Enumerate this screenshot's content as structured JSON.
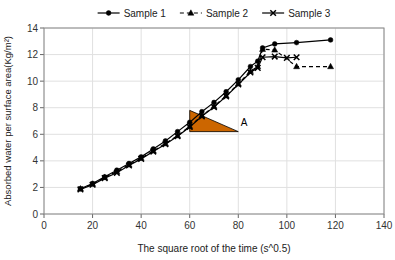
{
  "chart_data": {
    "type": "line",
    "series": [
      {
        "name": "Sample 1",
        "color": "#000000",
        "marker": "circle",
        "line_style": "solid",
        "x": [
          15,
          20,
          25,
          30,
          35,
          40,
          45,
          50,
          55,
          60,
          65,
          70,
          75,
          80,
          85,
          88,
          90,
          95,
          104,
          118
        ],
        "values": [
          1.9,
          2.3,
          2.8,
          3.3,
          3.8,
          4.3,
          4.9,
          5.5,
          6.2,
          6.9,
          7.7,
          8.4,
          9.2,
          10.1,
          11.1,
          11.5,
          12.5,
          12.8,
          12.9,
          13.1
        ]
      },
      {
        "name": "Sample 2",
        "color": "#000000",
        "marker": "triangle",
        "line_style": "dashed",
        "x": [
          15,
          20,
          25,
          30,
          35,
          40,
          45,
          50,
          55,
          60,
          65,
          70,
          75,
          80,
          85,
          88,
          90,
          95,
          104,
          118
        ],
        "values": [
          1.9,
          2.25,
          2.75,
          3.2,
          3.7,
          4.2,
          4.75,
          5.3,
          5.9,
          6.6,
          7.4,
          8.1,
          8.9,
          9.8,
          10.75,
          11.1,
          12.4,
          12.35,
          11.1,
          11.1
        ]
      },
      {
        "name": "Sample 3",
        "color": "#000000",
        "marker": "x",
        "line_style": "solid",
        "x": [
          15,
          20,
          25,
          30,
          35,
          40,
          45,
          50,
          55,
          60,
          65,
          70,
          75,
          80,
          85,
          88,
          90,
          95,
          100,
          104
        ],
        "values": [
          1.85,
          2.2,
          2.7,
          3.1,
          3.65,
          4.15,
          4.7,
          5.25,
          5.85,
          6.55,
          7.35,
          8.05,
          8.85,
          9.75,
          10.65,
          11.0,
          11.8,
          11.85,
          11.75,
          11.8
        ]
      }
    ],
    "annotations": [
      {
        "type": "triangle",
        "x": [
          60,
          60,
          80
        ],
        "y": [
          6.2,
          7.8,
          6.2
        ],
        "color": "#CC6600"
      },
      {
        "type": "text",
        "text": "A",
        "x": 81,
        "y": 6.9
      }
    ],
    "x_label": "The square root of the time (s^0.5)",
    "y_label": "Absorbed water per surface area(Kg/m²)",
    "xlim": [
      0,
      140
    ],
    "ylim": [
      0,
      14
    ],
    "xticks": [
      0,
      20,
      40,
      60,
      80,
      100,
      120,
      140
    ],
    "yticks": [
      0,
      2,
      4,
      6,
      8,
      10,
      12,
      14
    ],
    "grid": true,
    "legend": "top"
  }
}
